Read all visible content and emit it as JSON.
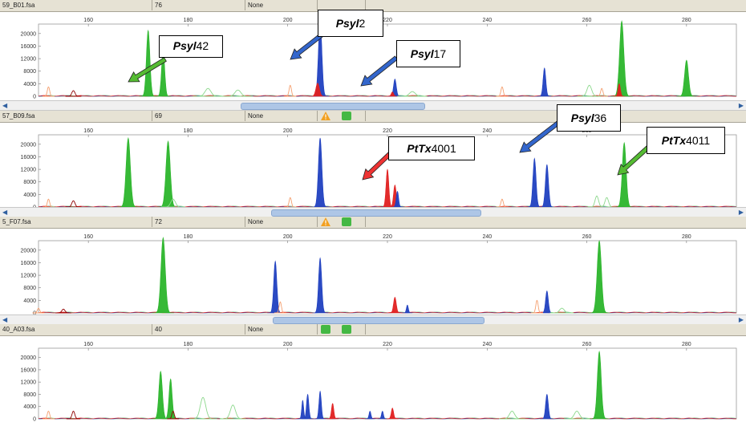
{
  "panels": [
    {
      "file": "59_B01.fsa",
      "num": "76",
      "status": "None",
      "badges": [],
      "x_ticks": [
        {
          "v": 160,
          "l": "160"
        },
        {
          "v": 180,
          "l": "180"
        },
        {
          "v": 200,
          "l": "200"
        },
        {
          "v": 220,
          "l": "220"
        },
        {
          "v": 240,
          "l": "240"
        },
        {
          "v": 260,
          "l": "260"
        },
        {
          "v": 280,
          "l": "280"
        }
      ],
      "y_ticks": [
        {
          "v": 0,
          "l": "0"
        },
        {
          "v": 4000,
          "l": "4000"
        },
        {
          "v": 8000,
          "l": "8000"
        },
        {
          "v": 12000,
          "l": "12000"
        },
        {
          "v": 16000,
          "l": "16000"
        },
        {
          "v": 20000,
          "l": "20000"
        }
      ],
      "peaks": [
        {
          "c": "green",
          "x": 172,
          "h": 21000,
          "w": 0.9
        },
        {
          "c": "green",
          "x": 175,
          "h": 15000,
          "w": 0.8
        },
        {
          "c": "blue",
          "x": 206.5,
          "h": 24000,
          "w": 0.9
        },
        {
          "c": "red",
          "x": 206,
          "h": 4200,
          "w": 0.9
        },
        {
          "c": "blue",
          "x": 221.5,
          "h": 5500,
          "w": 0.7
        },
        {
          "c": "red",
          "x": 221,
          "h": 1400,
          "w": 0.6
        },
        {
          "c": "blue",
          "x": 251.5,
          "h": 9000,
          "w": 0.7
        },
        {
          "c": "green",
          "x": 267,
          "h": 24000,
          "w": 1.1
        },
        {
          "c": "red",
          "x": 266.5,
          "h": 4000,
          "w": 0.6
        },
        {
          "c": "green",
          "x": 280,
          "h": 11500,
          "w": 1.0
        },
        {
          "c": "orange",
          "x": 152,
          "h": 3000,
          "w": 0.6
        },
        {
          "c": "orange",
          "x": 200.5,
          "h": 3500,
          "w": 0.6
        },
        {
          "c": "orange",
          "x": 243,
          "h": 3000,
          "w": 0.6
        },
        {
          "c": "orange",
          "x": 263,
          "h": 2500,
          "w": 0.6
        },
        {
          "c": "lightgreen",
          "x": 184,
          "h": 2500,
          "w": 1.5
        },
        {
          "c": "lightgreen",
          "x": 190,
          "h": 2000,
          "w": 1.5
        },
        {
          "c": "lightgreen",
          "x": 225,
          "h": 1500,
          "w": 1.5
        },
        {
          "c": "lightgreen",
          "x": 260.5,
          "h": 3500,
          "w": 1.2
        },
        {
          "c": "darkred",
          "x": 157,
          "h": 1800,
          "w": 0.8
        }
      ]
    },
    {
      "file": "57_B09.fsa",
      "num": "69",
      "status": "None",
      "badges": [
        "warning",
        "ok"
      ],
      "x_ticks": [
        {
          "v": 160,
          "l": "160"
        },
        {
          "v": 180,
          "l": "180"
        },
        {
          "v": 200,
          "l": "200"
        },
        {
          "v": 220,
          "l": "220"
        },
        {
          "v": 240,
          "l": "240"
        },
        {
          "v": 260,
          "l": "260"
        },
        {
          "v": 280,
          "l": "280"
        }
      ],
      "y_ticks": [
        {
          "v": 0,
          "l": "0"
        },
        {
          "v": 4000,
          "l": "4000"
        },
        {
          "v": 8000,
          "l": "8000"
        },
        {
          "v": 12000,
          "l": "12000"
        },
        {
          "v": 16000,
          "l": "16000"
        },
        {
          "v": 20000,
          "l": "20000"
        }
      ],
      "peaks": [
        {
          "c": "green",
          "x": 168,
          "h": 22000,
          "w": 1.1
        },
        {
          "c": "green",
          "x": 176,
          "h": 21000,
          "w": 1.1
        },
        {
          "c": "blue",
          "x": 206.5,
          "h": 22000,
          "w": 0.9
        },
        {
          "c": "red",
          "x": 220,
          "h": 12000,
          "w": 0.7
        },
        {
          "c": "red",
          "x": 221.5,
          "h": 7000,
          "w": 0.7
        },
        {
          "c": "blue",
          "x": 222,
          "h": 5000,
          "w": 0.6
        },
        {
          "c": "blue",
          "x": 249.5,
          "h": 15500,
          "w": 0.8
        },
        {
          "c": "blue",
          "x": 252,
          "h": 13500,
          "w": 0.8
        },
        {
          "c": "green",
          "x": 267.5,
          "h": 20500,
          "w": 1.0
        },
        {
          "c": "orange",
          "x": 152,
          "h": 2500,
          "w": 0.6
        },
        {
          "c": "orange",
          "x": 200.5,
          "h": 3000,
          "w": 0.6
        },
        {
          "c": "orange",
          "x": 243,
          "h": 2500,
          "w": 0.6
        },
        {
          "c": "lightgreen",
          "x": 177,
          "h": 2500,
          "w": 1.2
        },
        {
          "c": "lightgreen",
          "x": 262,
          "h": 3500,
          "w": 0.9
        },
        {
          "c": "lightgreen",
          "x": 264,
          "h": 3000,
          "w": 0.9
        },
        {
          "c": "darkred",
          "x": 157,
          "h": 2000,
          "w": 0.8
        }
      ]
    },
    {
      "file": "5_F07.fsa",
      "num": "72",
      "status": "None",
      "badges": [
        "warning",
        "ok"
      ],
      "x_ticks": [
        {
          "v": 160,
          "l": "160"
        },
        {
          "v": 180,
          "l": "180"
        },
        {
          "v": 200,
          "l": "200"
        },
        {
          "v": 220,
          "l": "220"
        },
        {
          "v": 240,
          "l": "240"
        },
        {
          "v": 260,
          "l": "260"
        },
        {
          "v": 280,
          "l": "280"
        }
      ],
      "y_ticks": [
        {
          "v": 0,
          "l": "0"
        },
        {
          "v": 4000,
          "l": "4000"
        },
        {
          "v": 8000,
          "l": "8000"
        },
        {
          "v": 12000,
          "l": "12000"
        },
        {
          "v": 16000,
          "l": "16000"
        },
        {
          "v": 20000,
          "l": "20000"
        }
      ],
      "peaks": [
        {
          "c": "green",
          "x": 175,
          "h": 24000,
          "w": 1.1
        },
        {
          "c": "blue",
          "x": 197.5,
          "h": 16500,
          "w": 0.8
        },
        {
          "c": "blue",
          "x": 206.5,
          "h": 17500,
          "w": 0.8
        },
        {
          "c": "red",
          "x": 221.5,
          "h": 5000,
          "w": 0.7
        },
        {
          "c": "blue",
          "x": 224,
          "h": 2500,
          "w": 0.5
        },
        {
          "c": "blue",
          "x": 252,
          "h": 7000,
          "w": 0.7
        },
        {
          "c": "green",
          "x": 262.5,
          "h": 23000,
          "w": 1.1
        },
        {
          "c": "orange",
          "x": 150,
          "h": 1500,
          "w": 0.6
        },
        {
          "c": "orange",
          "x": 198.5,
          "h": 3500,
          "w": 0.6
        },
        {
          "c": "orange",
          "x": 250,
          "h": 4000,
          "w": 0.6
        },
        {
          "c": "lightgreen",
          "x": 255,
          "h": 1500,
          "w": 1.2
        },
        {
          "c": "darkred",
          "x": 155,
          "h": 1200,
          "w": 0.8
        }
      ]
    },
    {
      "file": "40_A03.fsa",
      "num": "40",
      "status": "None",
      "badges": [
        "ok",
        "ok"
      ],
      "x_ticks": [
        {
          "v": 160,
          "l": "160"
        },
        {
          "v": 180,
          "l": "180"
        },
        {
          "v": 200,
          "l": "200"
        },
        {
          "v": 220,
          "l": "220"
        },
        {
          "v": 240,
          "l": "240"
        },
        {
          "v": 260,
          "l": "260"
        },
        {
          "v": 280,
          "l": "280"
        }
      ],
      "y_ticks": [
        {
          "v": 0,
          "l": "0"
        },
        {
          "v": 4000,
          "l": "4000"
        },
        {
          "v": 8000,
          "l": "8000"
        },
        {
          "v": 12000,
          "l": "12000"
        },
        {
          "v": 16000,
          "l": "16000"
        },
        {
          "v": 20000,
          "l": "20000"
        }
      ],
      "peaks": [
        {
          "c": "green",
          "x": 174.5,
          "h": 15500,
          "w": 0.9
        },
        {
          "c": "green",
          "x": 176.5,
          "h": 13000,
          "w": 0.8
        },
        {
          "c": "blue",
          "x": 204,
          "h": 8000,
          "w": 0.6
        },
        {
          "c": "blue",
          "x": 206.5,
          "h": 9000,
          "w": 0.6
        },
        {
          "c": "blue",
          "x": 203,
          "h": 6000,
          "w": 0.5
        },
        {
          "c": "red",
          "x": 209,
          "h": 5000,
          "w": 0.6
        },
        {
          "c": "blue",
          "x": 216.5,
          "h": 2500,
          "w": 0.5
        },
        {
          "c": "blue",
          "x": 219,
          "h": 2500,
          "w": 0.5
        },
        {
          "c": "red",
          "x": 221,
          "h": 3500,
          "w": 0.6
        },
        {
          "c": "blue",
          "x": 252,
          "h": 8000,
          "w": 0.7
        },
        {
          "c": "green",
          "x": 262.5,
          "h": 22000,
          "w": 1.0
        },
        {
          "c": "lightgreen",
          "x": 183,
          "h": 7000,
          "w": 1.4
        },
        {
          "c": "lightgreen",
          "x": 189,
          "h": 4500,
          "w": 1.3
        },
        {
          "c": "lightgreen",
          "x": 245,
          "h": 2500,
          "w": 1.3
        },
        {
          "c": "lightgreen",
          "x": 258,
          "h": 2500,
          "w": 1.3
        },
        {
          "c": "orange",
          "x": 152,
          "h": 2500,
          "w": 0.6
        },
        {
          "c": "darkred",
          "x": 157,
          "h": 2500,
          "w": 0.7
        },
        {
          "c": "darkred",
          "x": 177,
          "h": 2500,
          "w": 0.6
        }
      ]
    }
  ],
  "callouts": [
    {
      "italic": "Psyl",
      "num": "42",
      "color": "#55bb33"
    },
    {
      "italic": "Psyl",
      "num": "2",
      "color": "#3366cc"
    },
    {
      "italic": "Psyl",
      "num": "17",
      "color": "#3366cc"
    },
    {
      "italic": "PtTx",
      "num": "4001",
      "color": "#ee3333"
    },
    {
      "italic": "Psyl",
      "num": "36",
      "color": "#3366cc"
    },
    {
      "italic": "PtTx",
      "num": "4011",
      "color": "#55bb33"
    }
  ],
  "colors": {
    "green": "#2bb52b",
    "blue": "#2040c0",
    "red": "#e02020",
    "orange": "#f5a070",
    "lightgreen": "#8cd88c",
    "darkred": "#900000"
  }
}
